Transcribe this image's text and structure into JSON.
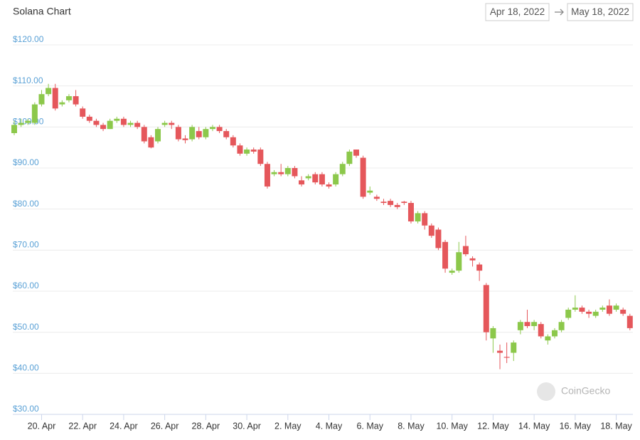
{
  "chart_data": {
    "type": "candlestick",
    "title": "Solana Chart",
    "date_from": "Apr 18, 2022",
    "date_to": "May 18, 2022",
    "watermark": "CoinGecko",
    "up_color": "#8cc84b",
    "down_color": "#e5575b",
    "grid": true,
    "ylim": [
      30,
      120
    ],
    "yticks": [
      {
        "value": 30,
        "label": "$30.00"
      },
      {
        "value": 40,
        "label": "$40.00"
      },
      {
        "value": 50,
        "label": "$50.00"
      },
      {
        "value": 60,
        "label": "$60.00"
      },
      {
        "value": 70,
        "label": "$70.00"
      },
      {
        "value": 80,
        "label": "$80.00"
      },
      {
        "value": 90,
        "label": "$90.00"
      },
      {
        "value": 100,
        "label": "$100.00"
      },
      {
        "value": 110,
        "label": "$110.00"
      },
      {
        "value": 120,
        "label": "$120.00"
      }
    ],
    "categories": [
      null,
      null,
      null,
      null,
      "20. Apr",
      null,
      null,
      null,
      null,
      null,
      "22. Apr",
      null,
      null,
      null,
      null,
      null,
      "24. Apr",
      null,
      null,
      null,
      null,
      null,
      "26. Apr",
      null,
      null,
      null,
      null,
      null,
      "28. Apr",
      null,
      null,
      null,
      null,
      null,
      "30. Apr",
      null,
      null,
      null,
      null,
      null,
      "2. May",
      null,
      null,
      null,
      null,
      null,
      "4. May",
      null,
      null,
      null,
      null,
      null,
      "6. May",
      null,
      null,
      null,
      null,
      null,
      "8. May",
      null,
      null,
      null,
      null,
      null,
      "10. May",
      null,
      null,
      null,
      null,
      null,
      "12. May",
      null,
      null,
      null,
      null,
      null,
      "14. May",
      null,
      null,
      null,
      null,
      null,
      "16. May",
      null,
      null,
      null,
      null,
      null,
      "18. May",
      null,
      null
    ],
    "open": [
      98.5,
      100.5,
      101,
      101,
      105.5,
      108,
      109.5,
      105.5,
      106.5,
      107.5,
      104.5,
      102.5,
      101.5,
      100.5,
      99.5,
      101.5,
      102,
      100.5,
      101,
      100,
      97.5,
      96.5,
      100.5,
      101,
      100,
      97.2,
      97,
      99,
      97.5,
      99.5,
      100,
      99,
      97.5,
      95.5,
      93.5,
      94.5,
      94.5,
      91,
      88.5,
      89,
      88.5,
      90,
      87,
      87.5,
      88.5,
      88.5,
      86,
      86,
      88.5,
      91,
      94.5,
      92.5,
      84,
      83,
      81.8,
      82,
      81,
      81.8,
      81.5,
      77,
      79,
      76,
      75,
      72,
      64.5,
      65,
      71,
      68,
      66.5,
      61.5,
      48.5,
      45.5,
      44,
      45,
      50.5,
      52.5,
      51.5,
      52,
      48,
      49,
      50.5,
      53.5,
      55.5,
      56,
      55,
      54,
      55.5,
      56.5,
      55.5,
      55.5,
      54
    ],
    "close": [
      100.5,
      101,
      101.5,
      105.5,
      108,
      109.5,
      104.5,
      106,
      107.5,
      105.5,
      102.5,
      101.5,
      100.5,
      99.5,
      101.5,
      102,
      100.5,
      101,
      100,
      96.5,
      95,
      99.5,
      101,
      100.5,
      97,
      96.8,
      100,
      97.5,
      99.5,
      100,
      99,
      97.5,
      95.5,
      93.5,
      94.5,
      94,
      91,
      85.5,
      89,
      88.5,
      90,
      88,
      86,
      88,
      86.5,
      86,
      85.5,
      88.5,
      91,
      94,
      93,
      83,
      84.5,
      82.5,
      81.5,
      81,
      80.5,
      81.5,
      77,
      79,
      76,
      73.5,
      70.5,
      65.5,
      65,
      69.5,
      69,
      67.5,
      65,
      50,
      51,
      45,
      43.8,
      47.5,
      52.5,
      51.5,
      52.5,
      49,
      49,
      50.5,
      52.5,
      55.5,
      56,
      55,
      54.5,
      55,
      56,
      54.5,
      56.5,
      54.5,
      51
    ],
    "high": [
      101.5,
      102,
      102,
      106,
      109,
      110.5,
      110.5,
      106.5,
      108,
      109,
      105,
      103,
      102,
      101,
      102,
      102.5,
      102.5,
      101.5,
      101.5,
      100.5,
      98,
      100,
      101.5,
      101.5,
      100.5,
      98,
      100.5,
      100,
      100,
      100.5,
      100.5,
      99.5,
      98,
      96,
      95,
      95,
      95,
      91.5,
      89.5,
      91,
      90.5,
      90.5,
      88,
      88.5,
      89,
      89,
      86.5,
      89,
      91.5,
      94.5,
      94.5,
      93,
      85.5,
      83.5,
      82.5,
      82.5,
      81.5,
      82,
      82,
      79.5,
      79.5,
      76.5,
      75.5,
      72.5,
      65.5,
      72,
      73.5,
      68.5,
      67,
      62,
      51.5,
      47,
      47.5,
      48,
      53,
      55.5,
      53,
      52.5,
      49.5,
      51,
      53,
      56,
      59,
      56.5,
      55.5,
      55.5,
      56.5,
      58,
      57,
      56,
      54.5
    ],
    "low": [
      98,
      100,
      100.5,
      100.5,
      105,
      107.5,
      104,
      105,
      106,
      105,
      102,
      101,
      100,
      99,
      99.5,
      101,
      100,
      100,
      99.5,
      96,
      94.8,
      96,
      100,
      99.5,
      96.5,
      96,
      96.5,
      97,
      97,
      99,
      98.5,
      97,
      95,
      93,
      93,
      93.5,
      90.5,
      85,
      88,
      88,
      88,
      87.5,
      85.5,
      87,
      86,
      85.5,
      85,
      85.5,
      88,
      90.5,
      92.5,
      82.5,
      83.5,
      82,
      81,
      80.5,
      80,
      81,
      76.5,
      76.5,
      75,
      73,
      70,
      64.5,
      64,
      64.5,
      68.5,
      66,
      62.5,
      48,
      45,
      41,
      42.5,
      43,
      49.5,
      51,
      50.5,
      48.5,
      47,
      48.5,
      50,
      53,
      55,
      54.5,
      53.5,
      53.5,
      55,
      54,
      55,
      54,
      50.5
    ]
  }
}
